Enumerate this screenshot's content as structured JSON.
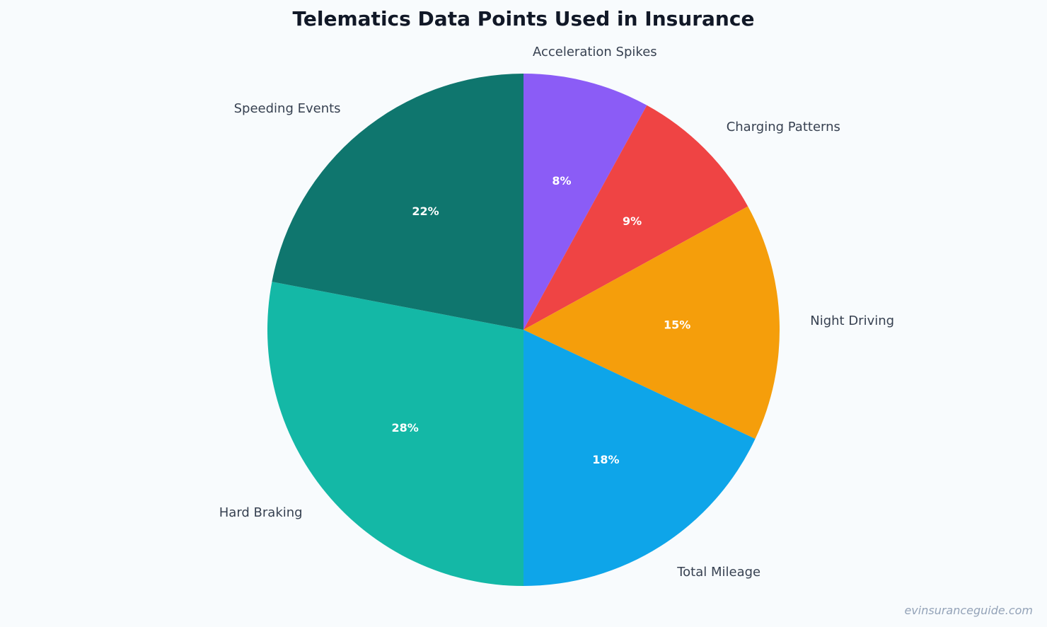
{
  "chart_data": {
    "type": "pie",
    "title": "Telematics Data Points Used in Insurance",
    "start": "12 o'clock",
    "direction": "clockwise",
    "slices": [
      {
        "label": "Acceleration Spikes",
        "value": 8,
        "pct_label": "8%",
        "color": "#8b5cf6"
      },
      {
        "label": "Charging Patterns",
        "value": 9,
        "pct_label": "9%",
        "color": "#ef4444"
      },
      {
        "label": "Night Driving",
        "value": 15,
        "pct_label": "15%",
        "color": "#f59e0b"
      },
      {
        "label": "Total Mileage",
        "value": 18,
        "pct_label": "18%",
        "color": "#0ea5e9"
      },
      {
        "label": "Hard Braking",
        "value": 28,
        "pct_label": "28%",
        "color": "#14b8a6"
      },
      {
        "label": "Speeding Events",
        "value": 22,
        "pct_label": "22%",
        "color": "#0f766e"
      }
    ]
  },
  "watermark": "evinsuranceguide.com"
}
